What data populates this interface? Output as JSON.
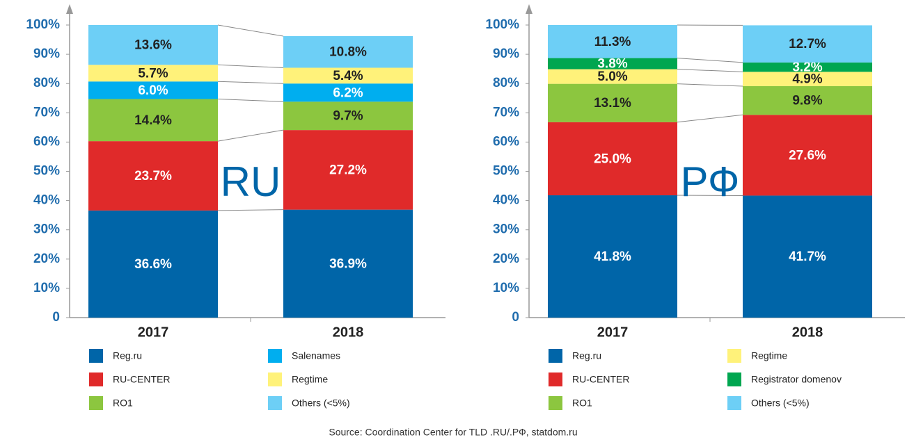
{
  "chart_data": [
    {
      "type": "stacked_bar",
      "annotation": "RU",
      "categories": [
        "2017",
        "2018"
      ],
      "ylim": [
        0,
        100
      ],
      "yticks": [
        0,
        {
          "value": 10,
          "label": "10%"
        },
        {
          "value": 20,
          "label": "20%"
        },
        {
          "value": 30,
          "label": "30%"
        },
        {
          "value": 40,
          "label": "40%"
        },
        {
          "value": 50,
          "label": "50%"
        },
        {
          "value": 60,
          "label": "60%"
        },
        {
          "value": 70,
          "label": "70%"
        },
        {
          "value": 80,
          "label": "80%"
        },
        {
          "value": 90,
          "label": "90%"
        },
        {
          "value": 100,
          "label": "100%"
        }
      ],
      "grid": false,
      "series": [
        {
          "name": "Reg.ru",
          "color": "#0065a8",
          "values": [
            36.6,
            36.9
          ],
          "value_labels": [
            "36.6%",
            "36.9%"
          ]
        },
        {
          "name": "RU-CENTER",
          "color": "#e02a2a",
          "values": [
            23.7,
            27.2
          ],
          "value_labels": [
            "23.7%",
            "27.2%"
          ]
        },
        {
          "name": "RO1",
          "color": "#8cc63f",
          "values": [
            14.4,
            9.7
          ],
          "value_labels": [
            "14.4%",
            "9.7%"
          ]
        },
        {
          "name": "Salenames",
          "color": "#00aeef",
          "values": [
            6.0,
            6.2
          ],
          "value_labels": [
            "6.0%",
            "6.2%"
          ]
        },
        {
          "name": "Regtime",
          "color": "#fff27a",
          "values": [
            5.7,
            5.4
          ],
          "value_labels": [
            "5.7%",
            "5.4%"
          ]
        },
        {
          "name": "Others (<5%)",
          "color": "#6dcff6",
          "values": [
            13.6,
            10.8
          ],
          "value_labels": [
            "13.6%",
            "10.8%"
          ]
        }
      ]
    },
    {
      "type": "stacked_bar",
      "annotation": "РФ",
      "categories": [
        "2017",
        "2018"
      ],
      "ylim": [
        0,
        100
      ],
      "yticks": [
        0,
        {
          "value": 10,
          "label": "10%"
        },
        {
          "value": 20,
          "label": "20%"
        },
        {
          "value": 30,
          "label": "30%"
        },
        {
          "value": 40,
          "label": "40%"
        },
        {
          "value": 50,
          "label": "50%"
        },
        {
          "value": 60,
          "label": "60%"
        },
        {
          "value": 70,
          "label": "70%"
        },
        {
          "value": 80,
          "label": "80%"
        },
        {
          "value": 90,
          "label": "90%"
        },
        {
          "value": 100,
          "label": "100%"
        }
      ],
      "grid": false,
      "series": [
        {
          "name": "Reg.ru",
          "color": "#0065a8",
          "values": [
            41.8,
            41.7
          ],
          "value_labels": [
            "41.8%",
            "41.7%"
          ]
        },
        {
          "name": "RU-CENTER",
          "color": "#e02a2a",
          "values": [
            25.0,
            27.6
          ],
          "value_labels": [
            "25.0%",
            "27.6%"
          ]
        },
        {
          "name": "RO1",
          "color": "#8cc63f",
          "values": [
            13.1,
            9.8
          ],
          "value_labels": [
            "13.1%",
            "9.8%"
          ]
        },
        {
          "name": "Regtime",
          "color": "#fff27a",
          "values": [
            5.0,
            4.9
          ],
          "value_labels": [
            "5.0%",
            "4.9%"
          ]
        },
        {
          "name": "Registrator domenov",
          "color": "#00a650",
          "values": [
            3.8,
            3.2
          ],
          "value_labels": [
            "3.8%",
            "3.2%"
          ]
        },
        {
          "name": "Others (<5%)",
          "color": "#6dcff6",
          "values": [
            11.3,
            12.7
          ],
          "value_labels": [
            "11.3%",
            "12.7%"
          ]
        }
      ]
    }
  ],
  "source": "Source: Coordination Center for TLD .RU/.РФ, statdom.ru"
}
